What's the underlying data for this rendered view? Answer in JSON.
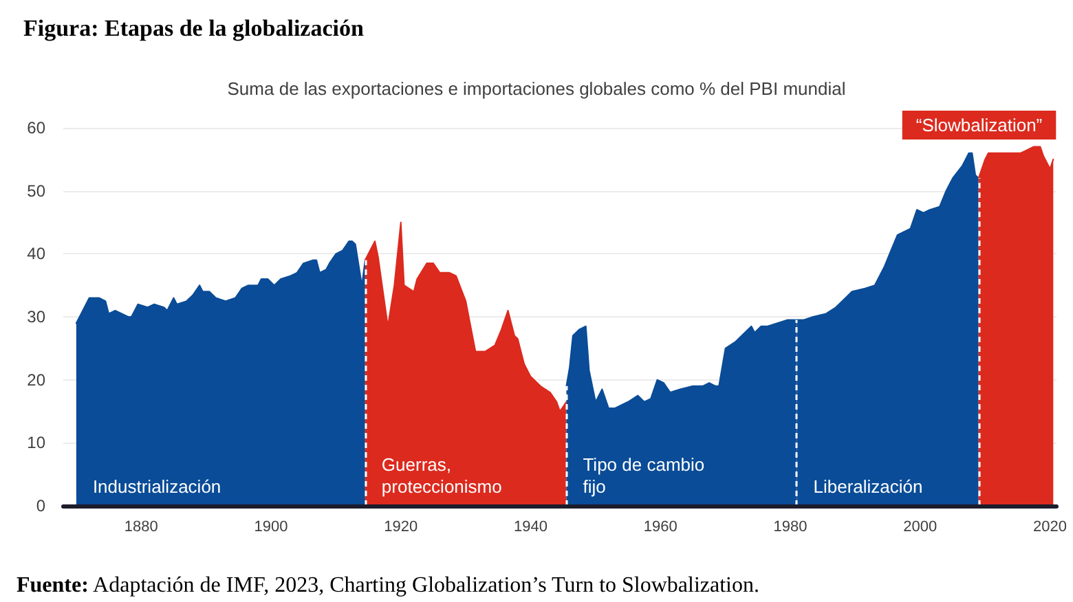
{
  "chart_data": {
    "type": "area",
    "title": "Figura: Etapas de la globalización",
    "subtitle": "Suma de las exportaciones e importaciones globales como % del PBI mundial",
    "series": [
      {
        "name": "Industrialización",
        "color": "#0a4c97",
        "x": [
          1870,
          1871,
          1872,
          1873.5,
          1874.5,
          1875,
          1876,
          1877,
          1878,
          1878.5,
          1879.5,
          1881,
          1882,
          1883.5,
          1884,
          1885,
          1885.5,
          1887,
          1888,
          1889,
          1889.5,
          1890.5,
          1891.5,
          1893,
          1894.5,
          1895.5,
          1896.5,
          1898,
          1898.5,
          1899.5,
          1900.5,
          1901.5,
          1903,
          1904,
          1905,
          1906.5,
          1907,
          1907.5,
          1908.5,
          1909,
          1910,
          1911,
          1912,
          1912.5,
          1913,
          1914,
          1914.5
        ],
        "values": [
          29,
          31,
          33,
          33,
          32.5,
          30.5,
          31,
          30.5,
          30,
          30,
          32,
          31.5,
          32,
          31.5,
          31,
          33,
          32,
          32.5,
          33.5,
          35,
          34,
          34,
          33,
          32.5,
          33,
          34.5,
          35,
          35,
          36,
          36,
          35,
          36,
          36.5,
          37,
          38.5,
          39,
          39,
          37,
          37.5,
          38.5,
          40,
          40.5,
          42,
          42,
          41.5,
          35,
          39
        ]
      },
      {
        "name": "Guerras,\nproteccionismo",
        "color": "#dc2a1e",
        "x": [
          1914.5,
          1916,
          1916.5,
          1918,
          1919,
          1920,
          1920.5,
          1922,
          1922.5,
          1924,
          1925,
          1926,
          1927.5,
          1928.5,
          1930,
          1931.5,
          1933,
          1934.5,
          1935.5,
          1936.5,
          1937.5,
          1938,
          1939,
          1940,
          1941.5,
          1943,
          1944,
          1944.5,
          1945.5
        ],
        "values": [
          39,
          42,
          39.5,
          28.5,
          35,
          45,
          35,
          34,
          36,
          38.5,
          38.5,
          37,
          37,
          36.5,
          32.5,
          24.5,
          24.5,
          25.5,
          28,
          31,
          27,
          26.5,
          22.5,
          20.5,
          19,
          18,
          16.5,
          15,
          16.5
        ]
      },
      {
        "name": "Tipo de cambio\nfijo",
        "color": "#0a4c97",
        "x": [
          1945.5,
          1946,
          1946.5,
          1947.5,
          1948.5,
          1949,
          1950,
          1951,
          1952,
          1953,
          1955,
          1956.5,
          1957.5,
          1958.5,
          1959.5,
          1960.5,
          1961.5,
          1963,
          1965,
          1966.5,
          1967.5,
          1968.5,
          1969,
          1970,
          1971.5,
          1972.5,
          1974,
          1974.5,
          1975.5,
          1976.5,
          1978,
          1979.5,
          1981
        ],
        "values": [
          19,
          22,
          27,
          28,
          28.5,
          21.5,
          16.5,
          18.5,
          15.5,
          15.5,
          16.5,
          17.5,
          16.5,
          17,
          20,
          19.5,
          18,
          18.5,
          19,
          19,
          19.5,
          19,
          19,
          25,
          26,
          27,
          28.5,
          27.5,
          28.5,
          28.5,
          29,
          29.5,
          29.5
        ]
      },
      {
        "name": "Liberalización",
        "color": "#0a4c97",
        "x": [
          1981,
          1982,
          1983.5,
          1985.5,
          1987,
          1988.5,
          1989.5,
          1991.5,
          1993,
          1994.5,
          1995.5,
          1996.5,
          1998.5,
          1999.5,
          2000.5,
          2001.5,
          2003,
          2004,
          2005,
          2006.5,
          2007.5,
          2008,
          2008.5,
          2009
        ],
        "values": [
          29.5,
          29.5,
          30,
          30.5,
          31.5,
          33,
          34,
          34.5,
          35,
          38,
          40.5,
          43,
          44,
          47,
          46.5,
          47,
          47.5,
          50,
          52,
          54,
          56,
          56,
          52.5,
          52
        ]
      },
      {
        "name": "“Slowbalization”",
        "color": "#dc2a1e",
        "x": [
          2009,
          2010,
          2010.5,
          2012,
          2014,
          2015.5,
          2016.5,
          2017.5,
          2018.5,
          2019,
          2020,
          2020.5
        ],
        "values": [
          52,
          55,
          56,
          56,
          56,
          56,
          56.5,
          57,
          57,
          55.5,
          53.5,
          55
        ]
      }
    ],
    "xlim": [
      1868,
      2021
    ],
    "xticks": [
      1880,
      1900,
      1920,
      1940,
      1960,
      1980,
      2000,
      2020
    ],
    "ylim": [
      0,
      60
    ],
    "yticks": [
      0,
      10,
      20,
      30,
      40,
      50,
      60
    ],
    "grid": "y",
    "ref_lines": [
      {
        "axis": "x",
        "value": 1914.5,
        "color": "#ffffff",
        "line_style": "dashed"
      },
      {
        "axis": "x",
        "value": 1945.5,
        "color": "#ffffff",
        "line_style": "dashed"
      },
      {
        "axis": "x",
        "value": 1981,
        "color": "#ffffff",
        "line_style": "dashed"
      },
      {
        "axis": "x",
        "value": 2009,
        "color": "#ffffff",
        "line_style": "dashed"
      }
    ],
    "annotations": [
      "Fuente: Adaptación de IMF, 2023, Charting Globalization’s Turn to Slowbalization."
    ]
  }
}
